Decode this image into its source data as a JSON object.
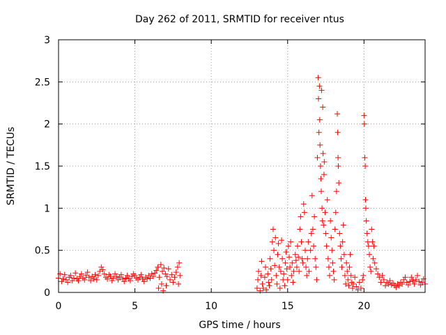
{
  "chart_data": {
    "type": "scatter",
    "title": "Day 262 of 2011, SRMTID for receiver ntus",
    "xlabel": "GPS time / hours",
    "ylabel": "SRMTID / TECUs",
    "xlim": [
      0,
      24
    ],
    "ylim": [
      0,
      3
    ],
    "xticks": [
      0,
      5,
      10,
      15,
      20
    ],
    "xtick_labels": [
      "0",
      "5",
      "10",
      "15",
      "20"
    ],
    "yticks": [
      0,
      0.5,
      1,
      1.5,
      2,
      2.5,
      3
    ],
    "ytick_labels": [
      "0",
      "0.5",
      "1",
      "1.5",
      "2",
      "2.5",
      "3"
    ],
    "grid": true,
    "marker": "+",
    "color": "#ff0000",
    "series": [
      {
        "name": "SRMTID",
        "points": [
          [
            0.0,
            0.17
          ],
          [
            0.1,
            0.22
          ],
          [
            0.2,
            0.13
          ],
          [
            0.3,
            0.16
          ],
          [
            0.4,
            0.21
          ],
          [
            0.5,
            0.15
          ],
          [
            0.6,
            0.12
          ],
          [
            0.7,
            0.18
          ],
          [
            0.8,
            0.2
          ],
          [
            0.9,
            0.14
          ],
          [
            1.0,
            0.17
          ],
          [
            1.1,
            0.23
          ],
          [
            1.2,
            0.16
          ],
          [
            1.3,
            0.14
          ],
          [
            1.4,
            0.19
          ],
          [
            1.5,
            0.22
          ],
          [
            1.6,
            0.17
          ],
          [
            1.7,
            0.15
          ],
          [
            1.8,
            0.2
          ],
          [
            1.9,
            0.24
          ],
          [
            2.0,
            0.18
          ],
          [
            2.1,
            0.14
          ],
          [
            2.2,
            0.19
          ],
          [
            2.3,
            0.16
          ],
          [
            2.4,
            0.21
          ],
          [
            2.5,
            0.15
          ],
          [
            2.6,
            0.2
          ],
          [
            2.7,
            0.25
          ],
          [
            2.8,
            0.3
          ],
          [
            2.9,
            0.27
          ],
          [
            3.0,
            0.22
          ],
          [
            3.1,
            0.18
          ],
          [
            3.2,
            0.16
          ],
          [
            3.3,
            0.21
          ],
          [
            3.4,
            0.19
          ],
          [
            3.5,
            0.14
          ],
          [
            3.6,
            0.17
          ],
          [
            3.7,
            0.22
          ],
          [
            3.8,
            0.19
          ],
          [
            3.9,
            0.15
          ],
          [
            4.0,
            0.18
          ],
          [
            4.1,
            0.21
          ],
          [
            4.2,
            0.16
          ],
          [
            4.3,
            0.13
          ],
          [
            4.4,
            0.17
          ],
          [
            4.5,
            0.2
          ],
          [
            4.6,
            0.16
          ],
          [
            4.7,
            0.14
          ],
          [
            4.8,
            0.19
          ],
          [
            4.9,
            0.22
          ],
          [
            5.0,
            0.2
          ],
          [
            5.1,
            0.17
          ],
          [
            5.2,
            0.15
          ],
          [
            5.3,
            0.18
          ],
          [
            5.4,
            0.21
          ],
          [
            5.5,
            0.16
          ],
          [
            5.6,
            0.13
          ],
          [
            5.7,
            0.18
          ],
          [
            5.8,
            0.16
          ],
          [
            5.9,
            0.2
          ],
          [
            6.0,
            0.17
          ],
          [
            6.1,
            0.22
          ],
          [
            6.2,
            0.19
          ],
          [
            6.3,
            0.23
          ],
          [
            6.4,
            0.26
          ],
          [
            6.5,
            0.3
          ],
          [
            6.55,
            0.05
          ],
          [
            6.6,
            0.18
          ],
          [
            6.7,
            0.33
          ],
          [
            6.75,
            0.1
          ],
          [
            6.8,
            0.25
          ],
          [
            6.85,
            0.02
          ],
          [
            6.9,
            0.29
          ],
          [
            7.0,
            0.22
          ],
          [
            7.05,
            0.08
          ],
          [
            7.1,
            0.19
          ],
          [
            7.2,
            0.28
          ],
          [
            7.3,
            0.15
          ],
          [
            7.4,
            0.21
          ],
          [
            7.5,
            0.12
          ],
          [
            7.6,
            0.18
          ],
          [
            7.7,
            0.24
          ],
          [
            7.8,
            0.3
          ],
          [
            7.85,
            0.1
          ],
          [
            7.9,
            0.35
          ],
          [
            7.95,
            0.2
          ],
          [
            13.0,
            0.05
          ],
          [
            13.05,
            0.15
          ],
          [
            13.1,
            0.25
          ],
          [
            13.2,
            0.02
          ],
          [
            13.25,
            0.2
          ],
          [
            13.3,
            0.37
          ],
          [
            13.35,
            0.1
          ],
          [
            13.4,
            0.05
          ],
          [
            13.5,
            0.18
          ],
          [
            13.55,
            0.3
          ],
          [
            13.6,
            0.03
          ],
          [
            13.7,
            0.22
          ],
          [
            13.75,
            0.12
          ],
          [
            13.8,
            0.08
          ],
          [
            13.85,
            0.4
          ],
          [
            13.9,
            0.28
          ],
          [
            13.95,
            0.15
          ],
          [
            14.0,
            0.6
          ],
          [
            14.05,
            0.75
          ],
          [
            14.1,
            0.5
          ],
          [
            14.15,
            0.32
          ],
          [
            14.2,
            0.65
          ],
          [
            14.25,
            0.2
          ],
          [
            14.3,
            0.1
          ],
          [
            14.35,
            0.45
          ],
          [
            14.4,
            0.58
          ],
          [
            14.45,
            0.3
          ],
          [
            14.5,
            0.05
          ],
          [
            14.55,
            0.25
          ],
          [
            14.6,
            0.62
          ],
          [
            14.65,
            0.4
          ],
          [
            14.7,
            0.15
          ],
          [
            14.75,
            0.22
          ],
          [
            14.8,
            0.08
          ],
          [
            14.85,
            0.35
          ],
          [
            14.9,
            0.48
          ],
          [
            14.95,
            0.28
          ],
          [
            15.0,
            0.15
          ],
          [
            15.05,
            0.55
          ],
          [
            15.1,
            0.42
          ],
          [
            15.15,
            0.3
          ],
          [
            15.2,
            0.6
          ],
          [
            15.25,
            0.2
          ],
          [
            15.3,
            0.35
          ],
          [
            15.35,
            0.12
          ],
          [
            15.4,
            0.25
          ],
          [
            15.5,
            0.45
          ],
          [
            15.55,
            0.38
          ],
          [
            15.6,
            0.3
          ],
          [
            15.65,
            0.55
          ],
          [
            15.7,
            0.42
          ],
          [
            15.75,
            0.25
          ],
          [
            15.8,
            0.75
          ],
          [
            15.85,
            0.9
          ],
          [
            15.9,
            0.6
          ],
          [
            15.95,
            0.4
          ],
          [
            16.0,
            0.35
          ],
          [
            16.05,
            1.05
          ],
          [
            16.1,
            0.95
          ],
          [
            16.15,
            0.5
          ],
          [
            16.2,
            0.3
          ],
          [
            16.25,
            0.2
          ],
          [
            16.3,
            0.4
          ],
          [
            16.35,
            0.6
          ],
          [
            16.4,
            0.25
          ],
          [
            16.5,
            0.5
          ],
          [
            16.55,
            0.7
          ],
          [
            16.6,
            1.15
          ],
          [
            16.65,
            0.75
          ],
          [
            16.7,
            0.55
          ],
          [
            16.75,
            0.9
          ],
          [
            16.8,
            0.4
          ],
          [
            16.85,
            0.3
          ],
          [
            16.9,
            0.15
          ],
          [
            16.95,
            1.6
          ],
          [
            17.0,
            2.55
          ],
          [
            17.02,
            2.3
          ],
          [
            17.05,
            1.9
          ],
          [
            17.08,
            2.45
          ],
          [
            17.1,
            2.05
          ],
          [
            17.12,
            1.75
          ],
          [
            17.15,
            1.5
          ],
          [
            17.18,
            1.35
          ],
          [
            17.2,
            1.2
          ],
          [
            17.22,
            2.4
          ],
          [
            17.25,
            1.0
          ],
          [
            17.28,
            0.85
          ],
          [
            17.3,
            2.2
          ],
          [
            17.32,
            1.65
          ],
          [
            17.35,
            0.8
          ],
          [
            17.38,
            1.4
          ],
          [
            17.4,
            1.55
          ],
          [
            17.45,
            0.95
          ],
          [
            17.5,
            0.7
          ],
          [
            17.55,
            0.55
          ],
          [
            17.6,
            1.1
          ],
          [
            17.65,
            0.4
          ],
          [
            17.7,
            0.3
          ],
          [
            17.75,
            0.2
          ],
          [
            17.8,
            0.85
          ],
          [
            17.85,
            0.65
          ],
          [
            17.9,
            0.5
          ],
          [
            17.95,
            0.35
          ],
          [
            18.0,
            0.25
          ],
          [
            18.05,
            0.15
          ],
          [
            18.1,
            0.75
          ],
          [
            18.15,
            0.95
          ],
          [
            18.2,
            1.2
          ],
          [
            18.25,
            2.12
          ],
          [
            18.28,
            1.9
          ],
          [
            18.3,
            1.6
          ],
          [
            18.32,
            1.5
          ],
          [
            18.35,
            1.3
          ],
          [
            18.4,
            0.7
          ],
          [
            18.45,
            0.55
          ],
          [
            18.5,
            0.4
          ],
          [
            18.55,
            0.3
          ],
          [
            18.6,
            0.6
          ],
          [
            18.65,
            0.8
          ],
          [
            18.7,
            0.45
          ],
          [
            18.75,
            0.2
          ],
          [
            18.8,
            0.1
          ],
          [
            18.85,
            0.35
          ],
          [
            18.9,
            0.25
          ],
          [
            18.95,
            0.15
          ],
          [
            19.0,
            0.08
          ],
          [
            19.05,
            0.3
          ],
          [
            19.1,
            0.45
          ],
          [
            19.15,
            0.2
          ],
          [
            19.2,
            0.12
          ],
          [
            19.25,
            0.05
          ],
          [
            19.3,
            0.1
          ],
          [
            19.4,
            0.18
          ],
          [
            19.5,
            0.07
          ],
          [
            19.6,
            0.03
          ],
          [
            19.7,
            0.12
          ],
          [
            19.8,
            0.05
          ],
          [
            19.9,
            0.15
          ],
          [
            19.95,
            0.2
          ],
          [
            20.0,
            2.1
          ],
          [
            20.02,
            2.0
          ],
          [
            20.05,
            1.6
          ],
          [
            20.08,
            1.5
          ],
          [
            20.1,
            1.1
          ],
          [
            20.12,
            1.0
          ],
          [
            20.15,
            0.85
          ],
          [
            20.2,
            0.7
          ],
          [
            20.25,
            0.6
          ],
          [
            20.3,
            0.55
          ],
          [
            20.35,
            0.45
          ],
          [
            20.4,
            0.3
          ],
          [
            20.45,
            0.25
          ],
          [
            20.5,
            0.75
          ],
          [
            20.55,
            0.6
          ],
          [
            20.6,
            0.4
          ],
          [
            20.65,
            0.55
          ],
          [
            20.7,
            0.35
          ],
          [
            20.8,
            0.28
          ],
          [
            20.9,
            0.22
          ],
          [
            21.0,
            0.18
          ],
          [
            21.1,
            0.12
          ],
          [
            21.2,
            0.2
          ],
          [
            21.3,
            0.15
          ],
          [
            21.4,
            0.08
          ],
          [
            21.5,
            0.12
          ],
          [
            21.6,
            0.1
          ],
          [
            21.7,
            0.14
          ],
          [
            21.8,
            0.09
          ],
          [
            21.9,
            0.11
          ],
          [
            22.0,
            0.08
          ],
          [
            22.1,
            0.06
          ],
          [
            22.2,
            0.1
          ],
          [
            22.3,
            0.08
          ],
          [
            22.4,
            0.12
          ],
          [
            22.5,
            0.1
          ],
          [
            22.6,
            0.15
          ],
          [
            22.7,
            0.18
          ],
          [
            22.8,
            0.12
          ],
          [
            22.9,
            0.09
          ],
          [
            23.0,
            0.13
          ],
          [
            23.1,
            0.18
          ],
          [
            23.2,
            0.14
          ],
          [
            23.3,
            0.1
          ],
          [
            23.4,
            0.15
          ],
          [
            23.5,
            0.2
          ],
          [
            23.6,
            0.13
          ],
          [
            23.7,
            0.09
          ],
          [
            23.8,
            0.12
          ],
          [
            23.9,
            0.16
          ],
          [
            24.0,
            0.1
          ]
        ]
      }
    ]
  }
}
